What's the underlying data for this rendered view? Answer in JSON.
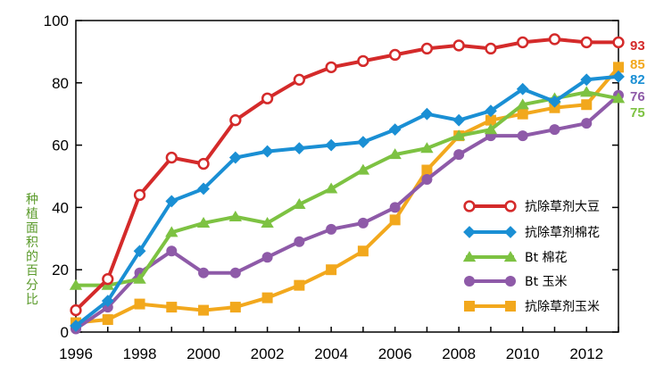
{
  "chart_data": {
    "type": "line",
    "title": "",
    "xlabel": "",
    "ylabel": "种植面积的百分比",
    "xlim": [
      1996,
      2013
    ],
    "ylim": [
      0,
      100
    ],
    "x_ticks": [
      "1996",
      "1998",
      "2000",
      "2002",
      "2004",
      "2006",
      "2008",
      "2010",
      "2012"
    ],
    "y_ticks": [
      "0",
      "20",
      "40",
      "60",
      "80",
      "100"
    ],
    "grid": false,
    "legend_position": "right",
    "x": [
      1996,
      1997,
      1998,
      1999,
      2000,
      2001,
      2002,
      2003,
      2004,
      2005,
      2006,
      2007,
      2008,
      2009,
      2010,
      2011,
      2012,
      2013
    ],
    "series": [
      {
        "name": "抗除草剂大豆",
        "color": "#d42a2a",
        "marker": "circle-open",
        "end_label": "93",
        "values": [
          7,
          17,
          44,
          56,
          54,
          68,
          75,
          81,
          85,
          87,
          89,
          91,
          92,
          91,
          93,
          94,
          93,
          93
        ]
      },
      {
        "name": "抗除草剂棉花",
        "color": "#1a8fd4",
        "marker": "diamond",
        "end_label": "82",
        "values": [
          2,
          10,
          26,
          42,
          46,
          56,
          58,
          59,
          60,
          61,
          65,
          70,
          68,
          71,
          78,
          74,
          81,
          82
        ]
      },
      {
        "name": "Bt 棉花",
        "color": "#7dc242",
        "marker": "triangle",
        "end_label": "75",
        "values": [
          15,
          15,
          17,
          32,
          35,
          37,
          35,
          41,
          46,
          52,
          57,
          59,
          63,
          65,
          73,
          75,
          77,
          75
        ]
      },
      {
        "name": "Bt 玉米",
        "color": "#8e5aa8",
        "marker": "circle",
        "end_label": "76",
        "values": [
          1,
          8,
          19,
          26,
          19,
          19,
          24,
          29,
          33,
          35,
          40,
          49,
          57,
          63,
          63,
          65,
          67,
          76
        ]
      },
      {
        "name": "抗除草剂玉米",
        "color": "#f2a81d",
        "marker": "square",
        "end_label": "85",
        "values": [
          3,
          4,
          9,
          8,
          7,
          8,
          11,
          15,
          20,
          26,
          36,
          52,
          63,
          68,
          70,
          72,
          73,
          85
        ]
      }
    ]
  }
}
